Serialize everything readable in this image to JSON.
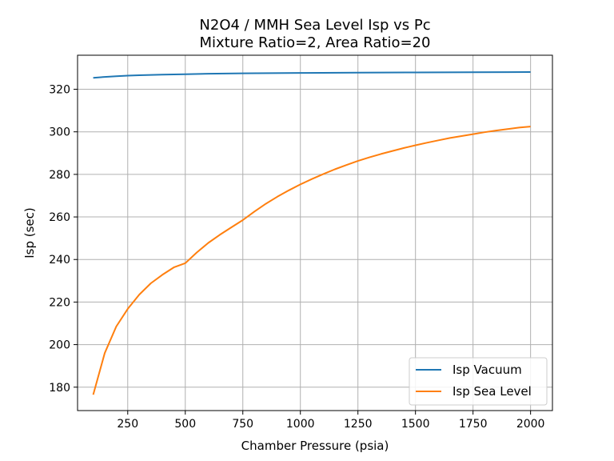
{
  "chart_data": {
    "type": "line",
    "title": "N2O4 / MMH Sea Level Isp vs Pc",
    "subtitle": "Mixture Ratio=2, Area Ratio=20",
    "xlabel": "Chamber Pressure (psia)",
    "ylabel": "Isp (sec)",
    "xlim": [
      32,
      2095
    ],
    "ylim": [
      169,
      336
    ],
    "grid": true,
    "legend_position": "lower-right",
    "xticks": [
      250,
      500,
      750,
      1000,
      1250,
      1500,
      1750,
      2000
    ],
    "xtick_labels": [
      "250",
      "500",
      "750",
      "1000",
      "1250",
      "1500",
      "1750",
      "2000"
    ],
    "yticks": [
      180,
      200,
      220,
      240,
      260,
      280,
      300,
      320
    ],
    "ytick_labels": [
      "180",
      "200",
      "220",
      "240",
      "260",
      "280",
      "300",
      "320"
    ],
    "series": [
      {
        "name": "Isp Vacuum",
        "color": "#1f77b4",
        "x": [
          100,
          150,
          200,
          250,
          300,
          400,
          500,
          600,
          750,
          1000,
          1250,
          1500,
          1750,
          2000
        ],
        "y": [
          325.4,
          325.8,
          326.1,
          326.4,
          326.6,
          326.9,
          327.1,
          327.3,
          327.5,
          327.7,
          327.8,
          327.9,
          328.0,
          328.1
        ]
      },
      {
        "name": "Isp Sea Level",
        "color": "#ff7f0e",
        "x": [
          100,
          150,
          200,
          250,
          300,
          350,
          400,
          450,
          500,
          550,
          600,
          650,
          700,
          750,
          800,
          850,
          900,
          950,
          1000,
          1050,
          1100,
          1150,
          1200,
          1250,
          1300,
          1350,
          1400,
          1450,
          1500,
          1550,
          1600,
          1650,
          1700,
          1750,
          1800,
          1850,
          1900,
          1950,
          2000
        ],
        "y": [
          176.5,
          196.0,
          208.5,
          216.8,
          223.5,
          228.8,
          232.8,
          236.3,
          238.3,
          243.3,
          247.8,
          251.6,
          255.1,
          258.5,
          262.5,
          266.2,
          269.5,
          272.5,
          275.3,
          277.8,
          280.2,
          282.4,
          284.4,
          286.3,
          288.0,
          289.6,
          291.0,
          292.4,
          293.7,
          294.9,
          296.0,
          297.1,
          298.0,
          298.9,
          299.8,
          300.6,
          301.3,
          302.0,
          302.5
        ]
      }
    ]
  }
}
